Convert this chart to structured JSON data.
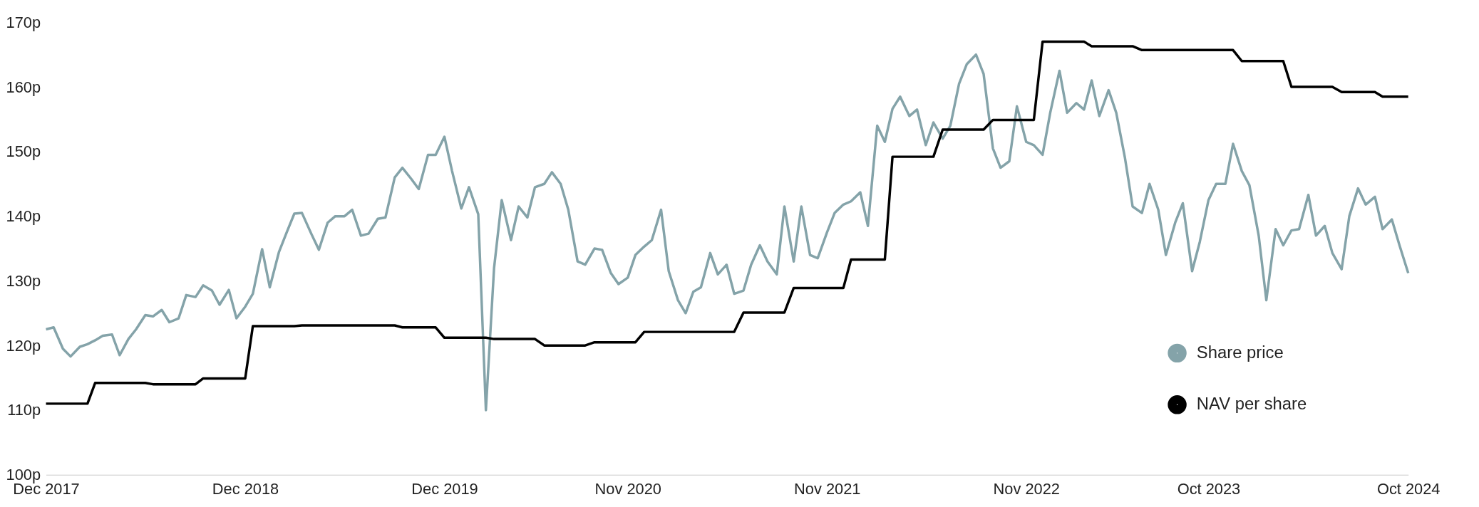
{
  "chart_data": {
    "type": "line",
    "x": [
      "2017-12-01",
      "2017-12-15",
      "2018-01-01",
      "2018-01-15",
      "2018-02-01",
      "2018-02-15",
      "2018-03-01",
      "2018-03-15",
      "2018-04-01",
      "2018-04-15",
      "2018-05-01",
      "2018-05-15",
      "2018-06-01",
      "2018-06-15",
      "2018-07-01",
      "2018-07-15",
      "2018-08-01",
      "2018-08-15",
      "2018-09-01",
      "2018-09-15",
      "2018-10-01",
      "2018-10-15",
      "2018-11-01",
      "2018-11-15",
      "2018-12-01",
      "2018-12-15",
      "2019-01-01",
      "2019-01-15",
      "2019-02-01",
      "2019-02-15",
      "2019-03-01",
      "2019-03-15",
      "2019-04-01",
      "2019-04-15",
      "2019-05-01",
      "2019-05-15",
      "2019-06-01",
      "2019-06-15",
      "2019-07-01",
      "2019-07-15",
      "2019-08-01",
      "2019-08-15",
      "2019-09-01",
      "2019-09-15",
      "2019-10-01",
      "2019-10-15",
      "2019-11-01",
      "2019-11-15",
      "2019-12-01",
      "2019-12-15",
      "2020-01-01",
      "2020-01-15",
      "2020-02-01",
      "2020-02-15",
      "2020-03-01",
      "2020-03-15",
      "2020-04-01",
      "2020-04-15",
      "2020-05-01",
      "2020-05-15",
      "2020-06-01",
      "2020-06-15",
      "2020-07-01",
      "2020-07-15",
      "2020-08-01",
      "2020-08-15",
      "2020-09-01",
      "2020-09-15",
      "2020-10-01",
      "2020-10-15",
      "2020-11-01",
      "2020-11-15",
      "2020-12-01",
      "2020-12-15",
      "2021-01-01",
      "2021-01-15",
      "2021-02-01",
      "2021-02-15",
      "2021-03-01",
      "2021-03-15",
      "2021-04-01",
      "2021-04-15",
      "2021-05-01",
      "2021-05-15",
      "2021-06-01",
      "2021-06-15",
      "2021-07-01",
      "2021-07-15",
      "2021-08-01",
      "2021-08-15",
      "2021-09-01",
      "2021-09-15",
      "2021-10-01",
      "2021-10-15",
      "2021-11-01",
      "2021-11-15",
      "2021-12-01",
      "2021-12-15",
      "2022-01-01",
      "2022-01-15",
      "2022-02-01",
      "2022-02-15",
      "2022-03-01",
      "2022-03-15",
      "2022-04-01",
      "2022-04-15",
      "2022-05-01",
      "2022-05-15",
      "2022-06-01",
      "2022-06-15",
      "2022-07-01",
      "2022-07-15",
      "2022-08-01",
      "2022-08-15",
      "2022-09-01",
      "2022-09-15",
      "2022-10-01",
      "2022-10-15",
      "2022-11-01",
      "2022-11-15",
      "2022-12-01",
      "2022-12-15",
      "2023-01-01",
      "2023-01-15",
      "2023-02-01",
      "2023-02-15",
      "2023-03-01",
      "2023-03-15",
      "2023-04-01",
      "2023-04-15",
      "2023-05-01",
      "2023-05-15",
      "2023-06-01",
      "2023-06-15",
      "2023-07-01",
      "2023-07-15",
      "2023-08-01",
      "2023-08-15",
      "2023-09-01",
      "2023-09-15",
      "2023-10-01",
      "2023-10-15",
      "2023-11-01",
      "2023-11-15",
      "2023-12-01",
      "2023-12-15",
      "2024-01-01",
      "2024-01-15",
      "2024-02-01",
      "2024-02-15",
      "2024-03-01",
      "2024-03-15",
      "2024-04-01",
      "2024-04-15",
      "2024-05-01",
      "2024-05-15",
      "2024-06-01",
      "2024-06-15",
      "2024-07-01",
      "2024-07-15",
      "2024-08-01",
      "2024-08-15",
      "2024-09-01",
      "2024-09-15",
      "2024-10-01"
    ],
    "series": [
      {
        "name": "Share price",
        "color": "#84a3a9",
        "values": [
          122.5,
          122.8,
          119.5,
          118.3,
          119.8,
          120.2,
          120.8,
          121.5,
          121.7,
          118.5,
          121.0,
          122.5,
          124.7,
          124.5,
          125.5,
          123.6,
          124.2,
          127.8,
          127.5,
          129.3,
          128.5,
          126.3,
          128.6,
          124.2,
          126.0,
          128.0,
          134.9,
          129.0,
          134.5,
          137.5,
          140.4,
          140.5,
          137.3,
          134.8,
          139.0,
          140.0,
          140.0,
          141.0,
          137.0,
          137.3,
          139.6,
          139.8,
          146.0,
          147.5,
          145.8,
          144.2,
          149.5,
          149.5,
          152.3,
          147.0,
          141.2,
          144.5,
          140.3,
          110.0,
          132.0,
          142.5,
          136.3,
          141.5,
          139.8,
          144.5,
          145.0,
          146.8,
          145.0,
          141.0,
          133.0,
          132.5,
          135.0,
          134.8,
          131.2,
          129.5,
          130.5,
          134.0,
          135.3,
          136.3,
          141.0,
          131.5,
          127.0,
          125.0,
          128.3,
          129.0,
          134.3,
          131.0,
          132.5,
          128.0,
          128.5,
          132.5,
          135.5,
          133.0,
          131.0,
          141.5,
          133.0,
          141.5,
          134.0,
          133.5,
          137.5,
          140.5,
          141.8,
          142.3,
          143.7,
          138.5,
          154.0,
          151.5,
          156.6,
          158.5,
          155.5,
          156.5,
          151.0,
          154.5,
          152.0,
          154.0,
          160.5,
          163.5,
          165.0,
          162.0,
          150.5,
          147.5,
          148.5,
          157.0,
          151.5,
          151.0,
          149.5,
          156.0,
          162.5,
          156.0,
          157.5,
          156.5,
          161.0,
          155.5,
          159.5,
          156.0,
          149.0,
          141.5,
          140.5,
          145.0,
          141.0,
          134.0,
          139.0,
          142.0,
          131.5,
          136.0,
          142.5,
          145.0,
          145.0,
          151.2,
          147.0,
          144.8,
          137.0,
          127.0,
          138.0,
          135.5,
          137.8,
          138.0,
          143.3,
          137.0,
          138.5,
          134.3,
          131.8,
          140.0,
          144.3,
          141.8,
          143.0,
          138.0,
          139.5,
          135.5,
          131.2
        ]
      },
      {
        "name": "NAV per share",
        "color": "#000000",
        "values": [
          111.0,
          111.0,
          111.0,
          111.0,
          111.0,
          111.0,
          114.2,
          114.2,
          114.2,
          114.2,
          114.2,
          114.2,
          114.2,
          114.0,
          114.0,
          114.0,
          114.0,
          114.0,
          114.0,
          114.9,
          114.9,
          114.9,
          114.9,
          114.9,
          114.9,
          123.0,
          123.0,
          123.0,
          123.0,
          123.0,
          123.0,
          123.1,
          123.1,
          123.1,
          123.1,
          123.1,
          123.1,
          123.1,
          123.1,
          123.1,
          123.1,
          123.1,
          123.1,
          122.8,
          122.8,
          122.8,
          122.8,
          122.8,
          121.2,
          121.2,
          121.2,
          121.2,
          121.2,
          121.2,
          121.0,
          121.0,
          121.0,
          121.0,
          121.0,
          121.0,
          120.0,
          120.0,
          120.0,
          120.0,
          120.0,
          120.0,
          120.5,
          120.5,
          120.5,
          120.5,
          120.5,
          120.5,
          122.1,
          122.1,
          122.1,
          122.1,
          122.1,
          122.1,
          122.1,
          122.1,
          122.1,
          122.1,
          122.1,
          122.1,
          125.1,
          125.1,
          125.1,
          125.1,
          125.1,
          125.1,
          128.9,
          128.9,
          128.9,
          128.9,
          128.9,
          128.9,
          128.9,
          133.3,
          133.3,
          133.3,
          133.3,
          133.3,
          149.2,
          149.2,
          149.2,
          149.2,
          149.2,
          149.2,
          153.4,
          153.4,
          153.4,
          153.4,
          153.4,
          153.4,
          154.9,
          154.9,
          154.9,
          154.9,
          154.9,
          154.9,
          167.0,
          167.0,
          167.0,
          167.0,
          167.0,
          167.0,
          166.3,
          166.3,
          166.3,
          166.3,
          166.3,
          166.3,
          165.7,
          165.7,
          165.7,
          165.7,
          165.7,
          165.7,
          165.7,
          165.7,
          165.7,
          165.7,
          165.7,
          165.7,
          164.0,
          164.0,
          164.0,
          164.0,
          164.0,
          164.0,
          160.0,
          160.0,
          160.0,
          160.0,
          160.0,
          160.0,
          159.2,
          159.2,
          159.2,
          159.2,
          159.2,
          158.5,
          158.5,
          158.5,
          158.5
        ]
      }
    ],
    "xlim": [
      "2017-12-01",
      "2024-10-01"
    ],
    "xticks": [
      {
        "value": "2017-12-01",
        "label": "Dec 2017"
      },
      {
        "value": "2018-12-01",
        "label": "Dec 2018"
      },
      {
        "value": "2019-12-01",
        "label": "Dec 2019"
      },
      {
        "value": "2020-11-01",
        "label": "Nov 2020"
      },
      {
        "value": "2021-11-01",
        "label": "Nov 2021"
      },
      {
        "value": "2022-11-01",
        "label": "Nov 2022"
      },
      {
        "value": "2023-10-01",
        "label": "Oct 2023"
      },
      {
        "value": "2024-10-01",
        "label": "Oct 2024"
      }
    ],
    "ylim": [
      100,
      170
    ],
    "yticks": [
      {
        "value": 100,
        "label": "100p"
      },
      {
        "value": 110,
        "label": "110p"
      },
      {
        "value": 120,
        "label": "120p"
      },
      {
        "value": 130,
        "label": "130p"
      },
      {
        "value": 140,
        "label": "140p"
      },
      {
        "value": 150,
        "label": "150p"
      },
      {
        "value": 160,
        "label": "160p"
      },
      {
        "value": 170,
        "label": "170p"
      }
    ],
    "legend": "right"
  }
}
